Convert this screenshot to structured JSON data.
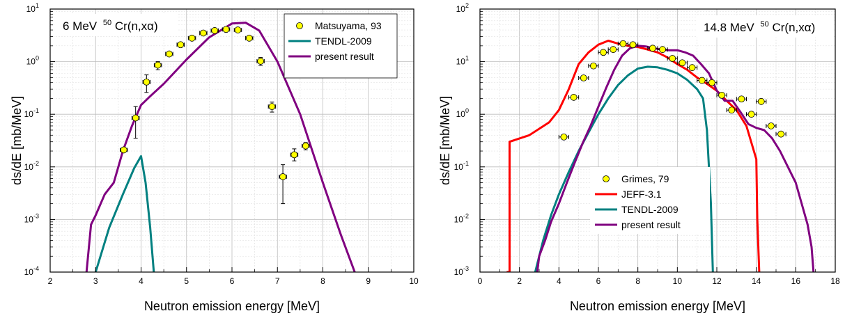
{
  "chart_data": [
    {
      "type": "line",
      "title_main": "6 MeV",
      "title_mass": "50",
      "title_reaction": "Cr(n,xα)",
      "xlabel": "Neutron emission energy [MeV]",
      "ylabel": "ds/dE [mb/MeV]",
      "xlim": [
        2,
        10
      ],
      "ylim_log10": [
        -4,
        1
      ],
      "yscale": "log",
      "grid": true,
      "x_ticks": [
        2,
        3,
        4,
        5,
        6,
        7,
        8,
        9,
        10
      ],
      "x_tick_labels": [
        "2",
        "3",
        "4",
        "5",
        "6",
        "7",
        "8",
        "9",
        "10"
      ],
      "y_tick_mantissa": "10",
      "y_tick_exponents": [
        "-4",
        "-3",
        "-2",
        "-1",
        "0",
        "1"
      ],
      "legend_position": "top-right",
      "points": {
        "name": "Matsuyama, 93",
        "color": "#ffff00",
        "data": [
          {
            "x": 3.62,
            "y": 0.021,
            "xerr": 0.08,
            "ylo": 0.021,
            "yhi": 0.021
          },
          {
            "x": 3.88,
            "y": 0.085,
            "xerr": 0.08,
            "ylo": 0.035,
            "yhi": 0.14
          },
          {
            "x": 4.12,
            "y": 0.41,
            "xerr": 0.08,
            "ylo": 0.26,
            "yhi": 0.56
          },
          {
            "x": 4.37,
            "y": 0.86,
            "xerr": 0.08,
            "ylo": 0.7,
            "yhi": 1.0
          },
          {
            "x": 4.62,
            "y": 1.4,
            "xerr": 0.08,
            "ylo": 1.3,
            "yhi": 1.5
          },
          {
            "x": 4.87,
            "y": 2.1,
            "xerr": 0.08,
            "ylo": 2.0,
            "yhi": 2.2
          },
          {
            "x": 5.12,
            "y": 2.8,
            "xerr": 0.08,
            "ylo": 2.7,
            "yhi": 2.9
          },
          {
            "x": 5.37,
            "y": 3.5,
            "xerr": 0.08,
            "ylo": 3.4,
            "yhi": 3.6
          },
          {
            "x": 5.62,
            "y": 3.9,
            "xerr": 0.08,
            "ylo": 3.8,
            "yhi": 4.0
          },
          {
            "x": 5.87,
            "y": 4.1,
            "xerr": 0.08,
            "ylo": 4.0,
            "yhi": 4.2
          },
          {
            "x": 6.13,
            "y": 4.0,
            "xerr": 0.08,
            "ylo": 3.9,
            "yhi": 4.1
          },
          {
            "x": 6.38,
            "y": 2.8,
            "xerr": 0.08,
            "ylo": 2.6,
            "yhi": 3.0
          },
          {
            "x": 6.63,
            "y": 1.02,
            "xerr": 0.08,
            "ylo": 0.85,
            "yhi": 1.2
          },
          {
            "x": 6.88,
            "y": 0.14,
            "xerr": 0.08,
            "ylo": 0.11,
            "yhi": 0.17
          },
          {
            "x": 7.12,
            "y": 0.0065,
            "xerr": 0.08,
            "ylo": 0.002,
            "yhi": 0.011
          },
          {
            "x": 7.37,
            "y": 0.017,
            "xerr": 0.08,
            "ylo": 0.013,
            "yhi": 0.022
          },
          {
            "x": 7.62,
            "y": 0.025,
            "xerr": 0.08,
            "ylo": 0.021,
            "yhi": 0.029
          }
        ]
      },
      "series": [
        {
          "name": "TENDL-2009",
          "color": "#008080",
          "x": [
            3.0,
            3.3,
            3.6,
            3.85,
            4.0,
            4.1,
            4.2,
            4.28
          ],
          "y": [
            0.0001,
            0.0007,
            0.003,
            0.0095,
            0.016,
            0.005,
            0.0007,
            0.0001
          ]
        },
        {
          "name": "present result",
          "color": "#800080",
          "x": [
            2.8,
            2.9,
            3.0,
            3.2,
            3.4,
            3.6,
            3.8,
            4.0,
            4.2,
            4.5,
            5.0,
            5.5,
            6.0,
            6.3,
            6.6,
            7.0,
            7.5,
            8.0,
            8.4,
            8.7
          ],
          "y": [
            0.0001,
            0.0008,
            0.0012,
            0.003,
            0.005,
            0.02,
            0.06,
            0.15,
            0.22,
            0.38,
            1.1,
            2.9,
            5.3,
            5.5,
            3.9,
            1.0,
            0.1,
            0.005,
            0.0005,
            0.0001
          ]
        }
      ]
    },
    {
      "type": "line",
      "title_main": "14.8 MeV",
      "title_mass": "50",
      "title_reaction": "Cr(n,xα)",
      "xlabel": "Neutron emission energy [MeV]",
      "ylabel": "ds/dE [mb/MeV]",
      "xlim": [
        0,
        18
      ],
      "ylim_log10": [
        -3,
        2
      ],
      "yscale": "log",
      "grid": true,
      "x_ticks": [
        0,
        2,
        4,
        6,
        8,
        10,
        12,
        14,
        16,
        18
      ],
      "x_tick_labels": [
        "0",
        "2",
        "4",
        "6",
        "8",
        "10",
        "12",
        "14",
        "16",
        "18"
      ],
      "y_tick_mantissa": "10",
      "y_tick_exponents": [
        "-3",
        "-2",
        "-1",
        "0",
        "1",
        "2"
      ],
      "legend_position": "bottom-center",
      "points": {
        "name": "Grimes, 79",
        "color": "#ffff00",
        "data": [
          {
            "x": 4.25,
            "y": 0.37,
            "xerr": 0.25
          },
          {
            "x": 4.75,
            "y": 2.1,
            "xerr": 0.25
          },
          {
            "x": 5.25,
            "y": 4.9,
            "xerr": 0.25
          },
          {
            "x": 5.75,
            "y": 8.3,
            "xerr": 0.25
          },
          {
            "x": 6.25,
            "y": 15.0,
            "xerr": 0.25
          },
          {
            "x": 6.75,
            "y": 17.0,
            "xerr": 0.25
          },
          {
            "x": 7.25,
            "y": 22.0,
            "xerr": 0.25
          },
          {
            "x": 7.75,
            "y": 21.0,
            "xerr": 0.25
          },
          {
            "x": 8.75,
            "y": 18.0,
            "xerr": 0.25
          },
          {
            "x": 9.25,
            "y": 17.0,
            "xerr": 0.25
          },
          {
            "x": 9.75,
            "y": 11.5,
            "xerr": 0.25
          },
          {
            "x": 10.25,
            "y": 9.5,
            "xerr": 0.25
          },
          {
            "x": 10.75,
            "y": 7.7,
            "xerr": 0.25
          },
          {
            "x": 11.25,
            "y": 4.4,
            "xerr": 0.25
          },
          {
            "x": 11.75,
            "y": 4.0,
            "xerr": 0.25
          },
          {
            "x": 12.25,
            "y": 2.3,
            "xerr": 0.25
          },
          {
            "x": 12.75,
            "y": 1.2,
            "xerr": 0.25
          },
          {
            "x": 13.25,
            "y": 1.95,
            "xerr": 0.25
          },
          {
            "x": 13.75,
            "y": 1.0,
            "xerr": 0.25
          },
          {
            "x": 14.25,
            "y": 1.75,
            "xerr": 0.25
          },
          {
            "x": 14.75,
            "y": 0.6,
            "xerr": 0.25
          },
          {
            "x": 15.25,
            "y": 0.42,
            "xerr": 0.25
          }
        ]
      },
      "series": [
        {
          "name": "JEFF-3.1",
          "color": "#ff0000",
          "x": [
            1.35,
            1.5,
            1.5,
            2.5,
            3.5,
            4.0,
            4.5,
            5.0,
            5.5,
            6.0,
            6.5,
            7.0,
            7.5,
            8.0,
            8.5,
            9.0,
            9.5,
            10.0,
            10.5,
            11.0,
            11.5,
            12.0,
            12.5,
            13.0,
            13.5,
            14.0,
            14.05,
            14.15
          ],
          "y": [
            0.001,
            0.001,
            0.3,
            0.4,
            0.7,
            1.2,
            3.0,
            9.0,
            15.0,
            21.0,
            25.0,
            22.0,
            20.0,
            19.0,
            17.0,
            15.0,
            12.0,
            9.0,
            7.0,
            5.0,
            3.8,
            2.8,
            1.8,
            1.2,
            0.6,
            0.14,
            0.01,
            0.001
          ]
        },
        {
          "name": "TENDL-2009",
          "color": "#008080",
          "x": [
            2.8,
            3.2,
            3.6,
            4.0,
            4.5,
            5.0,
            5.5,
            6.0,
            6.5,
            7.0,
            7.5,
            8.0,
            8.5,
            9.0,
            9.5,
            10.0,
            10.5,
            11.0,
            11.3,
            11.5,
            11.7,
            11.8
          ],
          "y": [
            0.001,
            0.004,
            0.012,
            0.03,
            0.08,
            0.2,
            0.45,
            1.0,
            2.0,
            3.6,
            5.5,
            7.4,
            8.0,
            7.8,
            7.0,
            6.0,
            4.5,
            3.0,
            2.0,
            0.5,
            0.02,
            0.001
          ]
        },
        {
          "name": "present result",
          "color": "#800080",
          "x": [
            2.9,
            3.0,
            3.3,
            3.6,
            4.0,
            4.4,
            4.8,
            5.2,
            5.6,
            6.0,
            6.4,
            6.8,
            7.2,
            7.6,
            8.0,
            8.4,
            8.8,
            9.2,
            9.6,
            10.0,
            10.4,
            10.8,
            11.2,
            11.6,
            12.0,
            12.4,
            12.8,
            13.2,
            13.6,
            14.0,
            14.4,
            14.8,
            15.2,
            15.6,
            16.0,
            16.3,
            16.6,
            16.8,
            16.9
          ],
          "y": [
            0.001,
            0.002,
            0.004,
            0.009,
            0.02,
            0.05,
            0.12,
            0.28,
            0.6,
            1.4,
            3.2,
            7.0,
            13.0,
            18.0,
            20.0,
            19.5,
            18.0,
            17.0,
            16.5,
            16.5,
            15.0,
            13.0,
            9.0,
            6.0,
            2.8,
            1.8,
            1.8,
            1.1,
            0.65,
            0.55,
            0.5,
            0.35,
            0.2,
            0.1,
            0.05,
            0.02,
            0.008,
            0.003,
            0.001
          ]
        }
      ]
    }
  ]
}
